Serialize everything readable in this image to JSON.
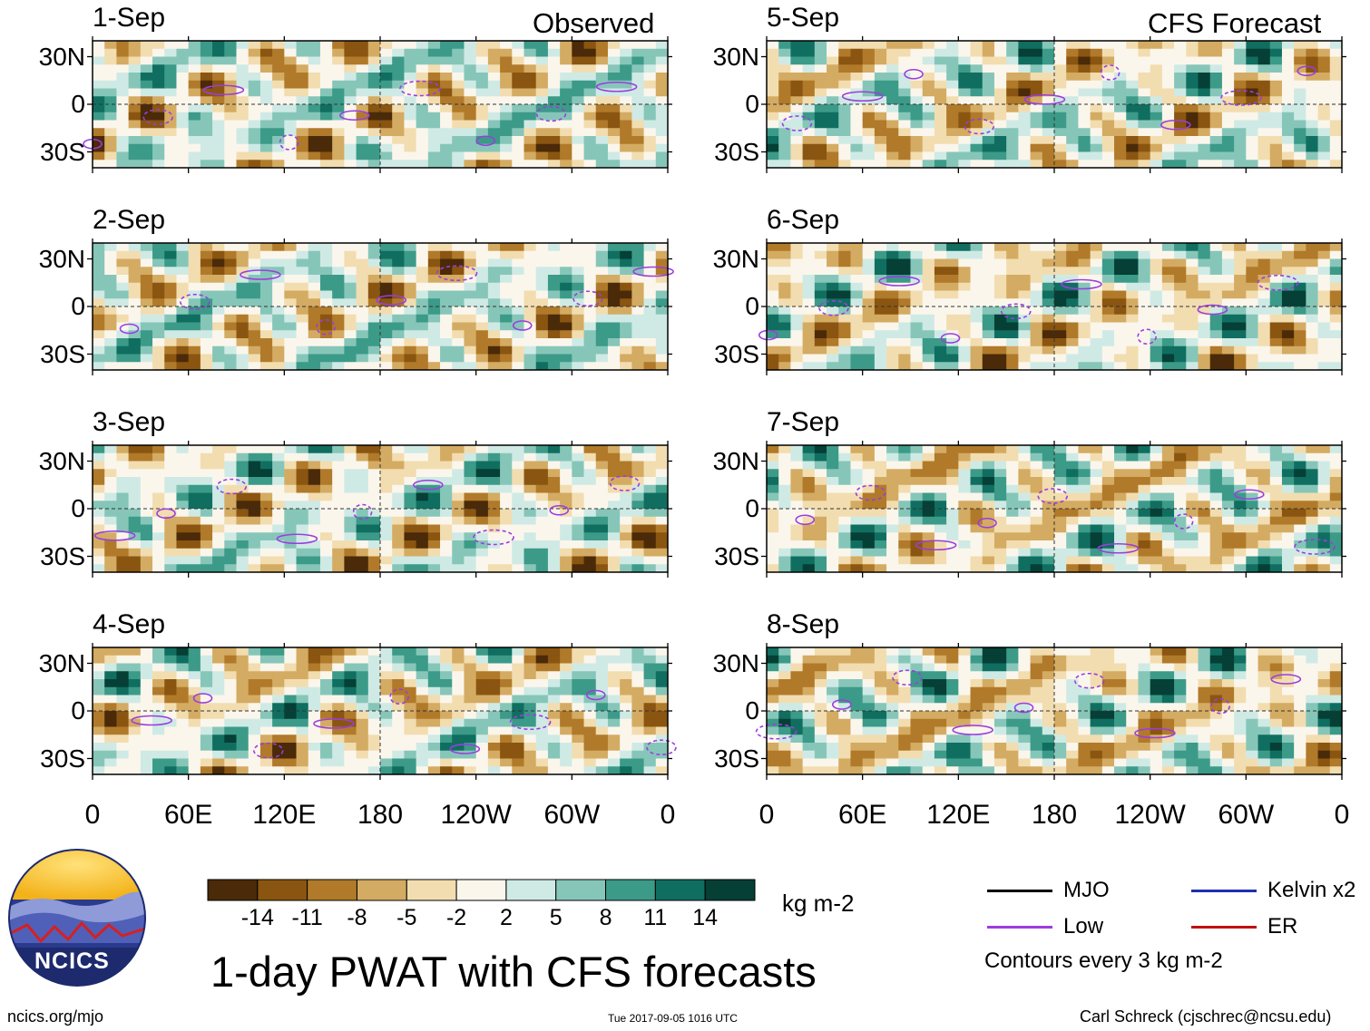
{
  "chart_data": {
    "type": "heatmap",
    "title": "1-day PWAT with CFS forecasts",
    "variable": "PWAT",
    "units": "kg m-2",
    "panel_titles": {
      "observed": "Observed",
      "forecast": "CFS Forecast"
    },
    "panels": [
      {
        "date": "1-Sep",
        "group": "Observed"
      },
      {
        "date": "2-Sep",
        "group": "Observed"
      },
      {
        "date": "3-Sep",
        "group": "Observed"
      },
      {
        "date": "4-Sep",
        "group": "Observed"
      },
      {
        "date": "5-Sep",
        "group": "CFS Forecast"
      },
      {
        "date": "6-Sep",
        "group": "CFS Forecast"
      },
      {
        "date": "7-Sep",
        "group": "CFS Forecast"
      },
      {
        "date": "8-Sep",
        "group": "CFS Forecast"
      }
    ],
    "x_ticks": [
      "0",
      "60E",
      "120E",
      "180",
      "120W",
      "60W",
      "0"
    ],
    "x_range_deg": [
      0,
      360
    ],
    "y_ticks": [
      "30N",
      "0",
      "30S"
    ],
    "y_range_deg": [
      -40,
      40
    ],
    "colorbar": {
      "labels": [
        "-14",
        "-11",
        "-8",
        "-5",
        "-2",
        "2",
        "5",
        "8",
        "11",
        "14"
      ],
      "colors": [
        "#4a2a08",
        "#8a5510",
        "#b07a2a",
        "#d4ab62",
        "#f2ddb0",
        "#fbf6ec",
        "#cfeae5",
        "#86c6b9",
        "#3c9a88",
        "#106e60",
        "#053f35"
      ],
      "units": "kg m-2"
    },
    "legend": [
      {
        "label": "MJO",
        "color": "#000000"
      },
      {
        "label": "Kelvin x2",
        "color": "#1f2fb0"
      },
      {
        "label": "Low",
        "color": "#9b3de0"
      },
      {
        "label": "ER",
        "color": "#c01010"
      }
    ],
    "contour_note": "Contours every 3 kg m-2"
  },
  "footer": {
    "logo_text": "NCICS",
    "url": "ncics.org/mjo",
    "timestamp": "Tue 2017-09-05 1016 UTC",
    "credit": "Carl Schreck (cjschrec@ncsu.edu)"
  }
}
